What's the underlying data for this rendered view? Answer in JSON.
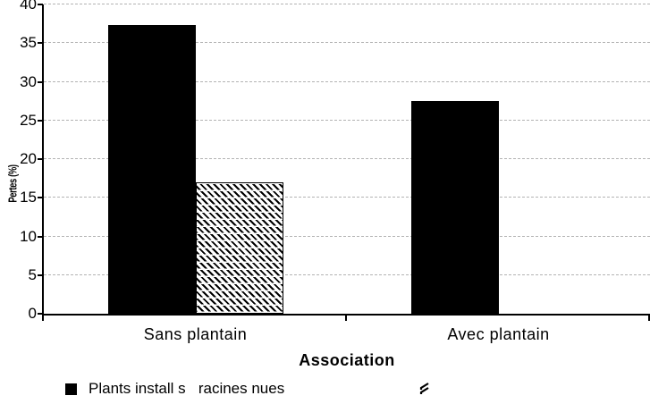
{
  "chart_data": {
    "type": "bar",
    "title": "",
    "categories": [
      "Sans plantain",
      "Avec plantain"
    ],
    "series": [
      {
        "name": "Plants install s   racines nues",
        "pattern": "solid-black",
        "values": [
          37.3,
          27.5
        ]
      },
      {
        "name": "",
        "pattern": "diagonal-hatch",
        "values": [
          17,
          0
        ]
      }
    ],
    "xlabel": "Association",
    "ylabel": "Pertes (%)",
    "ylim": [
      0,
      40
    ],
    "ytick_step": 5,
    "yticks": [
      0,
      5,
      10,
      15,
      20,
      25,
      30,
      35,
      40
    ],
    "grid": "horizontal-dashed-gray",
    "legend_position": "bottom-left"
  },
  "legend": {
    "items": [
      {
        "marker": "black-square",
        "label": "Plants install s   racines nues"
      },
      {
        "marker": "corrupted-arrow-glyph",
        "label": ""
      }
    ]
  },
  "colors": {
    "bar_fill": "#000000",
    "hatch_stroke": "#000000",
    "gridline": "#b3b3b3",
    "axis": "#000000",
    "text": "#000000",
    "background": "#ffffff"
  }
}
